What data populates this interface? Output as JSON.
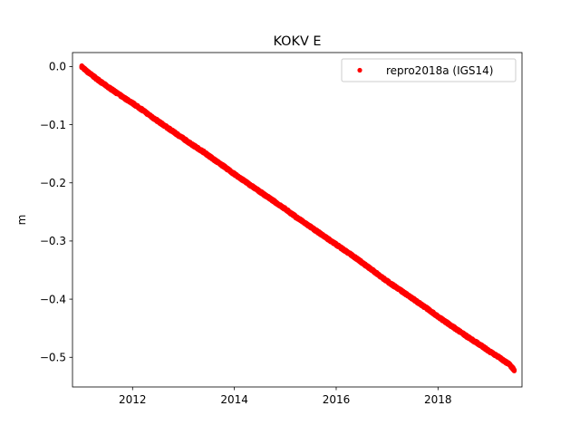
{
  "chart_data": {
    "type": "scatter",
    "title": "KOKV E",
    "xlabel": "",
    "ylabel": "m",
    "xlim": [
      2010.82,
      2019.65
    ],
    "ylim": [
      -0.551,
      0.024
    ],
    "x_ticks": [
      2012,
      2014,
      2016,
      2018
    ],
    "x_tick_labels": [
      "2012",
      "2014",
      "2016",
      "2018"
    ],
    "y_ticks": [
      0.0,
      -0.1,
      -0.2,
      -0.3,
      -0.4,
      -0.5
    ],
    "y_tick_labels": [
      "0.0",
      "−0.1",
      "−0.2",
      "−0.3",
      "−0.4",
      "−0.5"
    ],
    "grid": false,
    "legend_position": "top-right",
    "series": [
      {
        "name": "repro2018a (IGS14)",
        "color": "#ff0000",
        "marker": "dot",
        "x": [
          2011.0,
          2011.1,
          2011.25,
          2011.4,
          2011.6,
          2011.8,
          2012.0,
          2012.2,
          2012.4,
          2012.6,
          2012.8,
          2013.0,
          2013.2,
          2013.4,
          2013.6,
          2013.8,
          2014.0,
          2014.2,
          2014.4,
          2014.6,
          2014.8,
          2015.0,
          2015.2,
          2015.4,
          2015.6,
          2015.8,
          2016.0,
          2016.2,
          2016.4,
          2016.6,
          2016.8,
          2017.0,
          2017.2,
          2017.4,
          2017.6,
          2017.8,
          2018.0,
          2018.2,
          2018.4,
          2018.6,
          2018.8,
          2019.0,
          2019.2,
          2019.4,
          2019.5
        ],
        "y": [
          0.0,
          -0.008,
          -0.018,
          -0.028,
          -0.04,
          -0.052,
          -0.063,
          -0.075,
          -0.088,
          -0.1,
          -0.112,
          -0.124,
          -0.136,
          -0.147,
          -0.16,
          -0.172,
          -0.185,
          -0.197,
          -0.209,
          -0.221,
          -0.233,
          -0.245,
          -0.258,
          -0.27,
          -0.282,
          -0.294,
          -0.306,
          -0.318,
          -0.33,
          -0.343,
          -0.356,
          -0.369,
          -0.381,
          -0.393,
          -0.405,
          -0.417,
          -0.43,
          -0.442,
          -0.454,
          -0.466,
          -0.477,
          -0.489,
          -0.5,
          -0.512,
          -0.522
        ]
      }
    ]
  }
}
